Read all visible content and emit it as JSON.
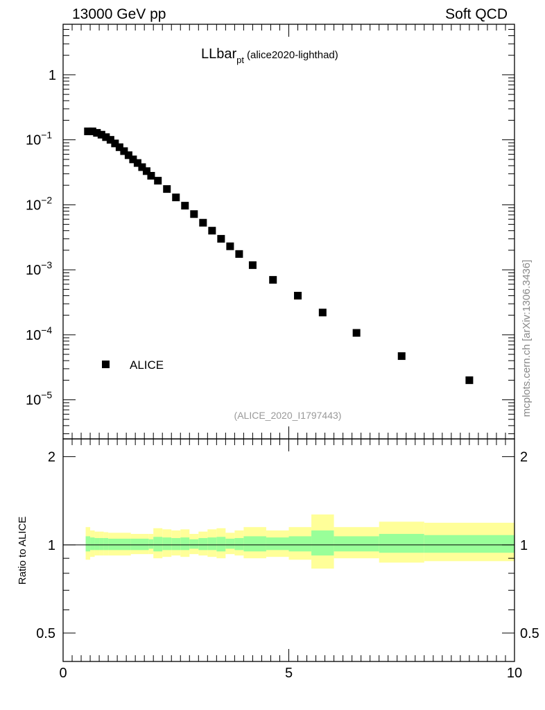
{
  "header": {
    "left": "13000 GeV pp",
    "right": "Soft QCD"
  },
  "side_label": "mcplots.cern.ch [arXiv:1306.3436]",
  "chart_data": [
    {
      "type": "scatter",
      "panel": "main",
      "title_main": "LLbar",
      "title_sub": "pt",
      "title_tag": "(alice2020-lighthad)",
      "analysis_tag": "(ALICE_2020_I1797443)",
      "xlim": [
        0,
        10
      ],
      "ylim": [
        2.5e-06,
        6
      ],
      "y_scale": "log",
      "y_ticks": [
        {
          "v": 1,
          "base": "1",
          "exp": ""
        },
        {
          "v": 0.1,
          "base": "10",
          "exp": "−1"
        },
        {
          "v": 0.01,
          "base": "10",
          "exp": "−2"
        },
        {
          "v": 0.001,
          "base": "10",
          "exp": "−3"
        },
        {
          "v": 0.0001,
          "base": "10",
          "exp": "−4"
        },
        {
          "v": 1e-05,
          "base": "10",
          "exp": "−5"
        }
      ],
      "legend": [
        {
          "name": "ALICE",
          "marker": "square",
          "color": "#000000"
        }
      ],
      "legend_position": "bottom-left",
      "series": [
        {
          "name": "ALICE",
          "color": "#000000",
          "x": [
            0.55,
            0.65,
            0.75,
            0.85,
            0.95,
            1.05,
            1.15,
            1.25,
            1.35,
            1.45,
            1.55,
            1.65,
            1.75,
            1.85,
            1.95,
            2.1,
            2.3,
            2.5,
            2.7,
            2.9,
            3.1,
            3.3,
            3.5,
            3.7,
            3.9,
            4.2,
            4.65,
            5.2,
            5.75,
            6.5,
            7.5,
            9.0
          ],
          "y": [
            0.135,
            0.135,
            0.128,
            0.12,
            0.11,
            0.1,
            0.088,
            0.077,
            0.067,
            0.058,
            0.05,
            0.044,
            0.038,
            0.033,
            0.028,
            0.0235,
            0.0175,
            0.013,
            0.0097,
            0.0072,
            0.0053,
            0.004,
            0.003,
            0.0023,
            0.00175,
            0.00118,
            0.0007,
            0.0004,
            0.00022,
            0.000107,
            4.7e-05,
            2e-05
          ]
        }
      ]
    },
    {
      "type": "area",
      "panel": "ratio",
      "ylabel": "Ratio to ALICE",
      "xlim": [
        0,
        10
      ],
      "ylim": [
        0.4,
        2.3
      ],
      "x_ticks": [
        "0",
        "5",
        "10"
      ],
      "y_ticks": [
        "0.5",
        "1",
        "2"
      ],
      "y_scale": "log",
      "reference_line": 1,
      "colors": {
        "inner": "#99ff99",
        "outer": "#ffff99"
      },
      "bins": [
        {
          "x0": 0.5,
          "x1": 0.6,
          "in_lo": 0.95,
          "in_hi": 1.07,
          "out_lo": 0.89,
          "out_hi": 1.15
        },
        {
          "x0": 0.6,
          "x1": 0.7,
          "in_lo": 0.96,
          "in_hi": 1.06,
          "out_lo": 0.91,
          "out_hi": 1.12
        },
        {
          "x0": 0.7,
          "x1": 0.8,
          "in_lo": 0.96,
          "in_hi": 1.055,
          "out_lo": 0.92,
          "out_hi": 1.11
        },
        {
          "x0": 0.8,
          "x1": 0.9,
          "in_lo": 0.96,
          "in_hi": 1.055,
          "out_lo": 0.92,
          "out_hi": 1.11
        },
        {
          "x0": 0.9,
          "x1": 1.0,
          "in_lo": 0.96,
          "in_hi": 1.055,
          "out_lo": 0.92,
          "out_hi": 1.105
        },
        {
          "x0": 1.0,
          "x1": 1.5,
          "in_lo": 0.96,
          "in_hi": 1.05,
          "out_lo": 0.92,
          "out_hi": 1.1
        },
        {
          "x0": 1.5,
          "x1": 1.9,
          "in_lo": 0.96,
          "in_hi": 1.05,
          "out_lo": 0.93,
          "out_hi": 1.09
        },
        {
          "x0": 1.9,
          "x1": 2.0,
          "in_lo": 0.97,
          "in_hi": 1.045,
          "out_lo": 0.93,
          "out_hi": 1.09
        },
        {
          "x0": 2.0,
          "x1": 2.2,
          "in_lo": 0.95,
          "in_hi": 1.065,
          "out_lo": 0.9,
          "out_hi": 1.14
        },
        {
          "x0": 2.2,
          "x1": 2.4,
          "in_lo": 0.96,
          "in_hi": 1.06,
          "out_lo": 0.91,
          "out_hi": 1.13
        },
        {
          "x0": 2.4,
          "x1": 2.6,
          "in_lo": 0.96,
          "in_hi": 1.055,
          "out_lo": 0.92,
          "out_hi": 1.12
        },
        {
          "x0": 2.6,
          "x1": 2.8,
          "in_lo": 0.96,
          "in_hi": 1.06,
          "out_lo": 0.91,
          "out_hi": 1.13
        },
        {
          "x0": 2.8,
          "x1": 3.0,
          "in_lo": 0.97,
          "in_hi": 1.045,
          "out_lo": 0.93,
          "out_hi": 1.09
        },
        {
          "x0": 3.0,
          "x1": 3.2,
          "in_lo": 0.96,
          "in_hi": 1.055,
          "out_lo": 0.92,
          "out_hi": 1.11
        },
        {
          "x0": 3.2,
          "x1": 3.4,
          "in_lo": 0.96,
          "in_hi": 1.06,
          "out_lo": 0.91,
          "out_hi": 1.13
        },
        {
          "x0": 3.4,
          "x1": 3.6,
          "in_lo": 0.95,
          "in_hi": 1.065,
          "out_lo": 0.9,
          "out_hi": 1.14
        },
        {
          "x0": 3.6,
          "x1": 3.8,
          "in_lo": 0.97,
          "in_hi": 1.05,
          "out_lo": 0.93,
          "out_hi": 1.1
        },
        {
          "x0": 3.8,
          "x1": 4.0,
          "in_lo": 0.96,
          "in_hi": 1.055,
          "out_lo": 0.92,
          "out_hi": 1.12
        },
        {
          "x0": 4.0,
          "x1": 4.5,
          "in_lo": 0.95,
          "in_hi": 1.07,
          "out_lo": 0.9,
          "out_hi": 1.15
        },
        {
          "x0": 4.5,
          "x1": 5.0,
          "in_lo": 0.96,
          "in_hi": 1.06,
          "out_lo": 0.91,
          "out_hi": 1.12
        },
        {
          "x0": 5.0,
          "x1": 5.5,
          "in_lo": 0.95,
          "in_hi": 1.07,
          "out_lo": 0.89,
          "out_hi": 1.15
        },
        {
          "x0": 5.5,
          "x1": 6.0,
          "in_lo": 0.92,
          "in_hi": 1.12,
          "out_lo": 0.83,
          "out_hi": 1.27
        },
        {
          "x0": 6.0,
          "x1": 7.0,
          "in_lo": 0.95,
          "in_hi": 1.07,
          "out_lo": 0.9,
          "out_hi": 1.15
        },
        {
          "x0": 7.0,
          "x1": 8.0,
          "in_lo": 0.94,
          "in_hi": 1.09,
          "out_lo": 0.87,
          "out_hi": 1.2
        },
        {
          "x0": 8.0,
          "x1": 10.0,
          "in_lo": 0.94,
          "in_hi": 1.08,
          "out_lo": 0.88,
          "out_hi": 1.19
        }
      ]
    }
  ]
}
